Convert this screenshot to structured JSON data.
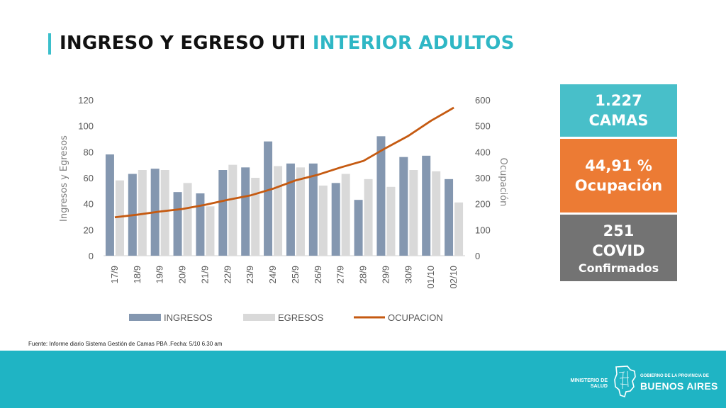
{
  "title": {
    "part1": "INGRESO Y EGRESO UTI",
    "part2": "INTERIOR ADULTOS"
  },
  "chart_data": {
    "type": "bar",
    "categories": [
      "17/9",
      "18/9",
      "19/9",
      "20/9",
      "21/9",
      "22/9",
      "23/9",
      "24/9",
      "25/9",
      "26/9",
      "27/9",
      "28/9",
      "29/9",
      "30/9",
      "01/10",
      "02/10"
    ],
    "series": [
      {
        "name": "INGRESOS",
        "type": "bar",
        "axis": "left",
        "color": "#8497b0",
        "values": [
          78,
          63,
          67,
          49,
          48,
          66,
          68,
          88,
          71,
          71,
          56,
          43,
          92,
          76,
          77,
          59
        ]
      },
      {
        "name": "EGRESOS",
        "type": "bar",
        "axis": "left",
        "color": "#d9d9d9",
        "values": [
          58,
          66,
          66,
          56,
          38,
          70,
          60,
          69,
          68,
          54,
          63,
          59,
          53,
          66,
          65,
          41
        ]
      },
      {
        "name": "OCUPACION",
        "type": "line",
        "axis": "right",
        "color": "#c55a11",
        "values": [
          148,
          158,
          170,
          180,
          196,
          215,
          232,
          258,
          290,
          312,
          340,
          365,
          415,
          462,
          520,
          570
        ]
      }
    ],
    "ylabel": "Ingresos y Egresos",
    "y2label": "Ocupación",
    "ylim": [
      0,
      120
    ],
    "y2lim": [
      0,
      600
    ],
    "yticks": [
      0,
      20,
      40,
      60,
      80,
      100,
      120
    ],
    "y2ticks": [
      0,
      100,
      200,
      300,
      400,
      500,
      600
    ],
    "grid": false,
    "legend": "bottom"
  },
  "kpis": {
    "camas": {
      "line1": "1.227",
      "line2": "CAMAS",
      "color": "#48bfc9"
    },
    "ocupacion": {
      "line1": "44,91 %",
      "line2": "Ocupación",
      "color": "#ec7b34"
    },
    "covid": {
      "line1": "251",
      "line2": "COVID",
      "line3": "Confirmados",
      "color": "#737373"
    }
  },
  "source": "Fuente: Informe diario Sistema Gestión de Camas PBA .Fecha: 5/10 6.30 am",
  "footer": {
    "ministerio_line1": "MINISTERIO DE",
    "ministerio_line2": "SALUD",
    "gobierno": "GOBIERNO DE LA PROVINCIA DE",
    "buenos_aires": "BUENOS AIRES",
    "color": "#1fb4c4"
  }
}
